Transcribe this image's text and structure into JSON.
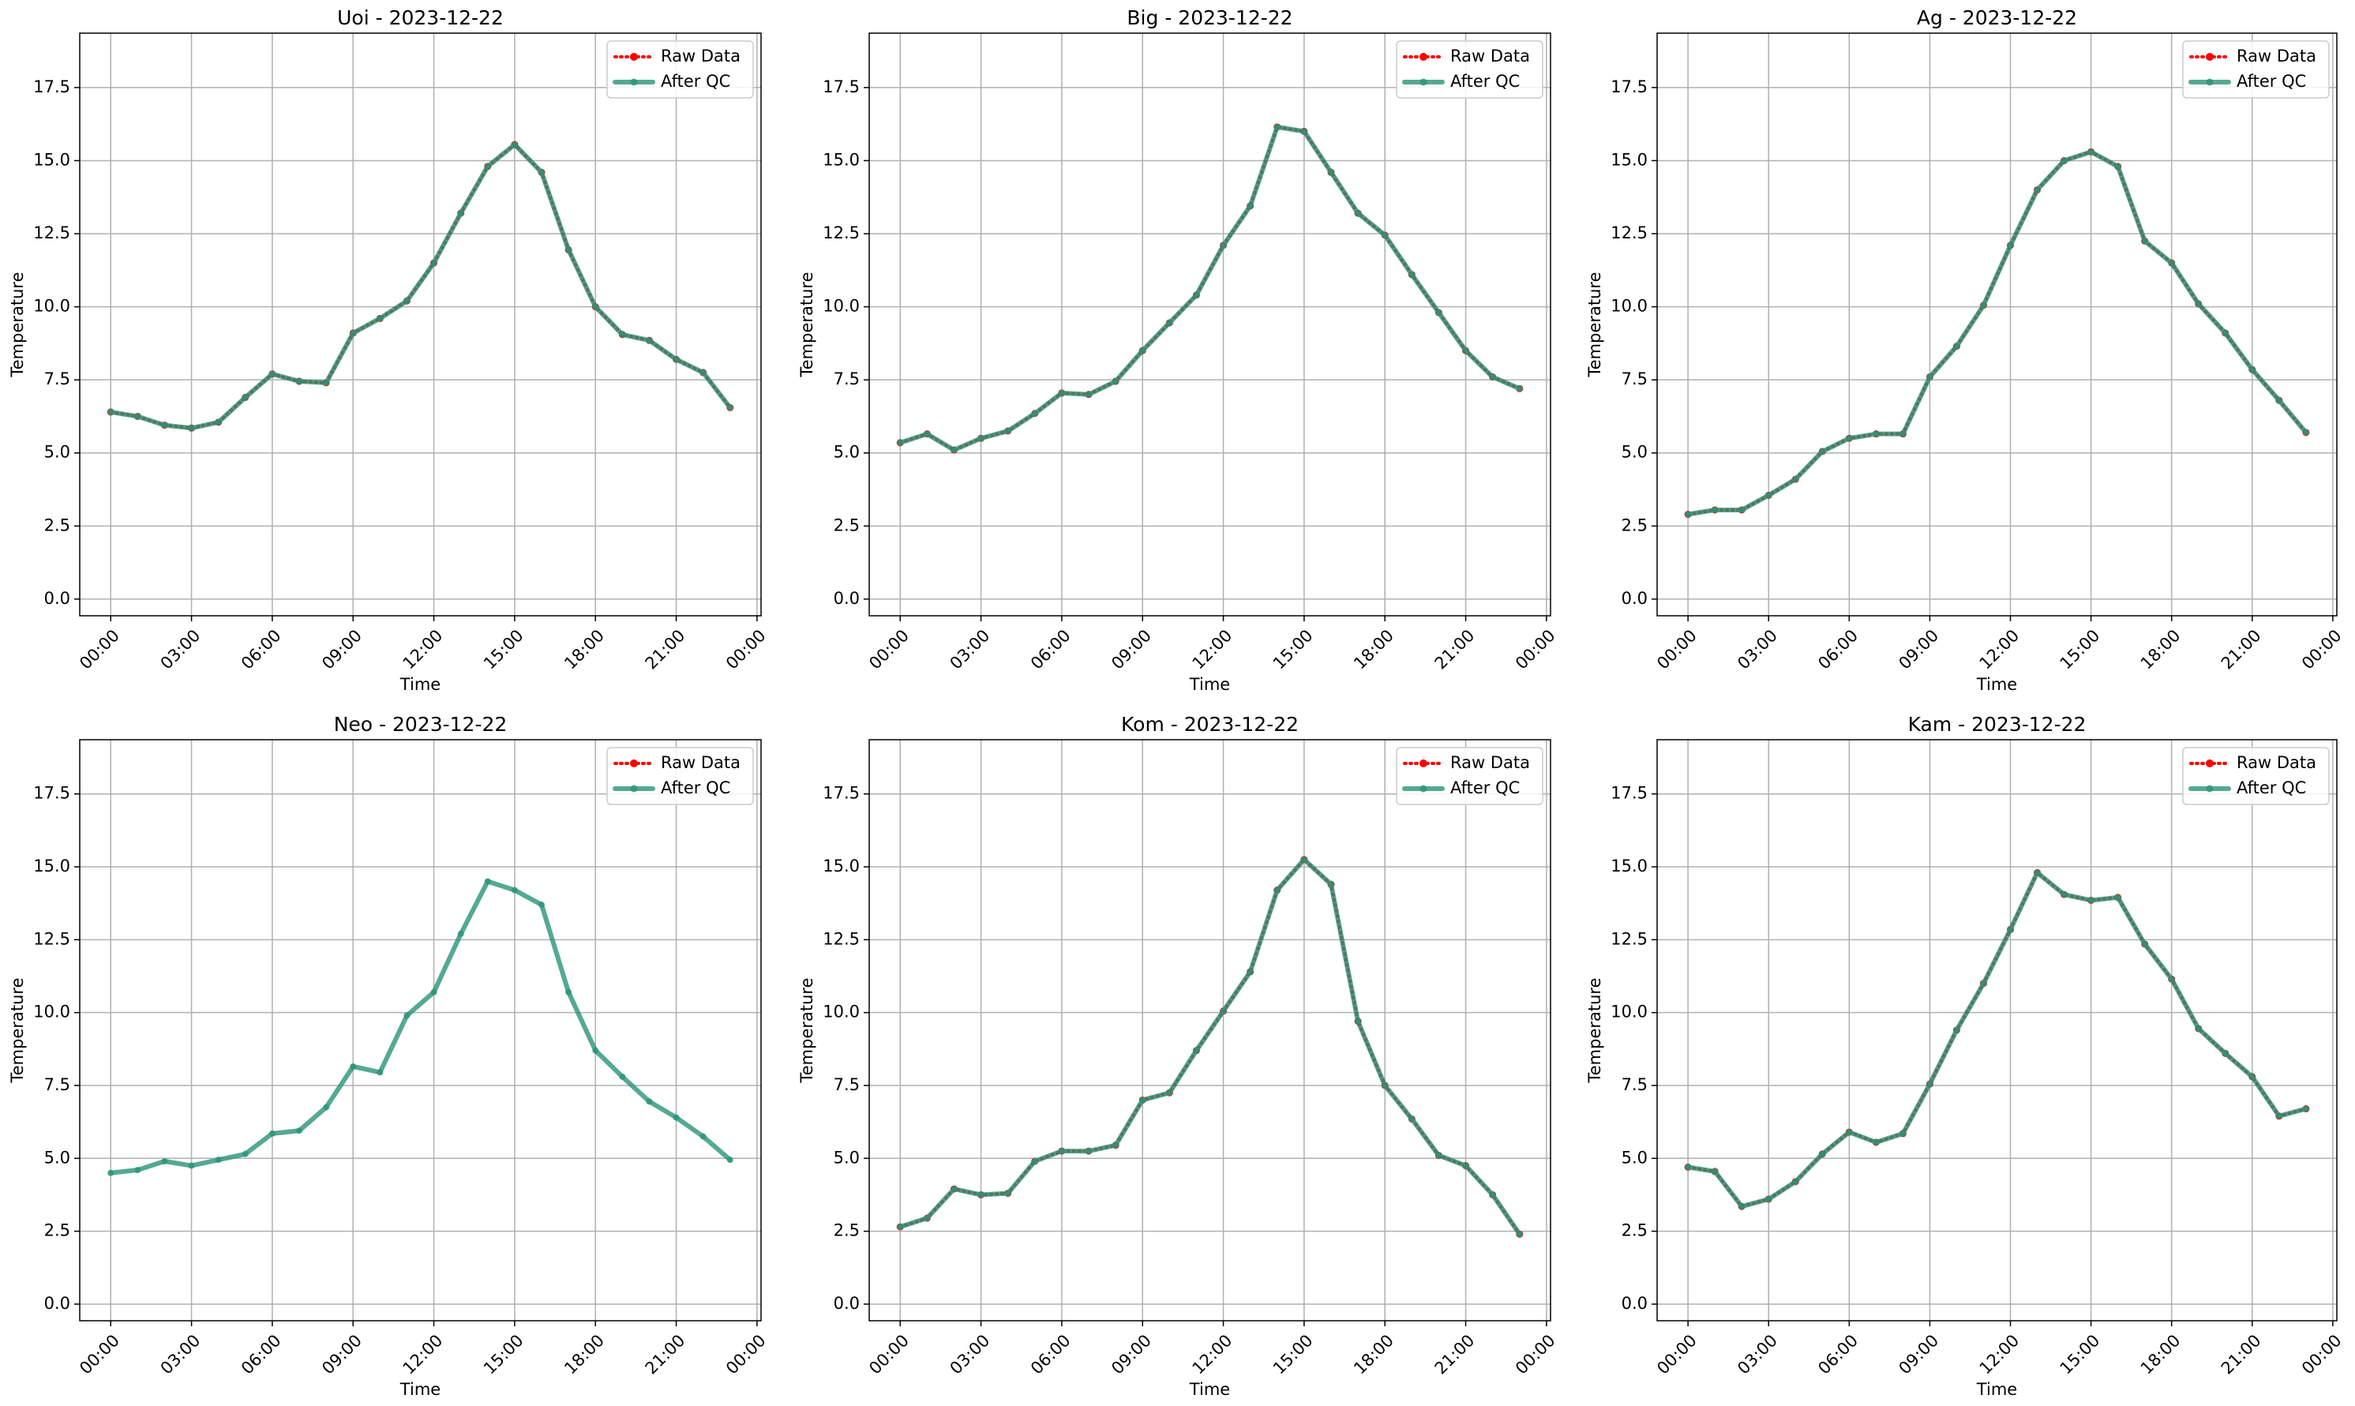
{
  "chart_data": [
    {
      "type": "line",
      "title": "Uoi - 2023-12-22",
      "xlabel": "Time",
      "ylabel": "Temperature",
      "x": [
        0,
        1,
        2,
        3,
        4,
        5,
        6,
        7,
        8,
        9,
        10,
        11,
        12,
        13,
        14,
        15,
        16,
        17,
        18,
        19,
        20,
        21,
        22,
        23
      ],
      "xlim": [
        -1.15,
        24.15
      ],
      "xticks": [
        {
          "value": 0,
          "label": "00:00"
        },
        {
          "value": 3,
          "label": "03:00"
        },
        {
          "value": 6,
          "label": "06:00"
        },
        {
          "value": 9,
          "label": "09:00"
        },
        {
          "value": 12,
          "label": "12:00"
        },
        {
          "value": 15,
          "label": "15:00"
        },
        {
          "value": 18,
          "label": "18:00"
        },
        {
          "value": 21,
          "label": "21:00"
        },
        {
          "value": 24,
          "label": "00:00"
        }
      ],
      "ylim": [
        -0.57,
        19.36
      ],
      "yticks": [
        {
          "value": 0,
          "label": "0.0"
        },
        2.5,
        {
          "value": 5,
          "label": "5.0"
        },
        7.5,
        {
          "value": 10,
          "label": "10.0"
        },
        12.5,
        {
          "value": 15,
          "label": "15.0"
        },
        17.5
      ],
      "grid": true,
      "legend": "upper right",
      "series": [
        {
          "name": "Raw Data",
          "color": "#ff0000",
          "values": [
            6.4,
            6.25,
            5.95,
            5.85,
            6.05,
            6.9,
            7.7,
            7.45,
            7.4,
            9.1,
            9.6,
            10.2,
            11.5,
            13.2,
            14.8,
            15.55,
            14.6,
            11.95,
            10.0,
            9.05,
            8.85,
            8.2,
            7.75,
            6.55
          ]
        },
        {
          "name": "After QC",
          "color": "#2a9478",
          "values": [
            6.4,
            6.25,
            5.95,
            5.85,
            6.05,
            6.9,
            7.7,
            7.45,
            7.4,
            9.1,
            9.6,
            10.2,
            11.5,
            13.2,
            14.8,
            15.55,
            14.6,
            11.95,
            10.0,
            9.05,
            8.85,
            8.2,
            7.75,
            6.55
          ]
        }
      ]
    },
    {
      "type": "line",
      "title": "Big - 2023-12-22",
      "xlabel": "Time",
      "ylabel": "Temperature",
      "x": [
        0,
        1,
        2,
        3,
        4,
        5,
        6,
        7,
        8,
        9,
        10,
        11,
        12,
        13,
        14,
        15,
        16,
        17,
        18,
        19,
        20,
        21,
        22,
        23
      ],
      "xlim": [
        -1.15,
        24.15
      ],
      "xticks": [
        {
          "value": 0,
          "label": "00:00"
        },
        {
          "value": 3,
          "label": "03:00"
        },
        {
          "value": 6,
          "label": "06:00"
        },
        {
          "value": 9,
          "label": "09:00"
        },
        {
          "value": 12,
          "label": "12:00"
        },
        {
          "value": 15,
          "label": "15:00"
        },
        {
          "value": 18,
          "label": "18:00"
        },
        {
          "value": 21,
          "label": "21:00"
        },
        {
          "value": 24,
          "label": "00:00"
        }
      ],
      "ylim": [
        -0.57,
        19.36
      ],
      "yticks": [
        {
          "value": 0,
          "label": "0.0"
        },
        2.5,
        {
          "value": 5,
          "label": "5.0"
        },
        7.5,
        {
          "value": 10,
          "label": "10.0"
        },
        12.5,
        {
          "value": 15,
          "label": "15.0"
        },
        17.5
      ],
      "grid": true,
      "legend": "upper right",
      "series": [
        {
          "name": "Raw Data",
          "color": "#ff0000",
          "values": [
            5.35,
            5.65,
            5.1,
            5.5,
            5.75,
            6.35,
            7.05,
            7.0,
            7.45,
            8.5,
            9.45,
            10.4,
            12.1,
            13.45,
            16.15,
            16.0,
            14.6,
            13.2,
            12.45,
            11.1,
            9.8,
            8.5,
            7.6,
            7.2
          ]
        },
        {
          "name": "After QC",
          "color": "#2a9478",
          "values": [
            5.35,
            5.65,
            5.1,
            5.5,
            5.75,
            6.35,
            7.05,
            7.0,
            7.45,
            8.5,
            9.45,
            10.4,
            12.1,
            13.45,
            16.15,
            16.0,
            14.6,
            13.2,
            12.45,
            11.1,
            9.8,
            8.5,
            7.6,
            7.2
          ]
        }
      ]
    },
    {
      "type": "line",
      "title": "Ag - 2023-12-22",
      "xlabel": "Time",
      "ylabel": "Temperature",
      "x": [
        0,
        1,
        2,
        3,
        4,
        5,
        6,
        7,
        8,
        9,
        10,
        11,
        12,
        13,
        14,
        15,
        16,
        17,
        18,
        19,
        20,
        21,
        22,
        23
      ],
      "xlim": [
        -1.15,
        24.15
      ],
      "xticks": [
        {
          "value": 0,
          "label": "00:00"
        },
        {
          "value": 3,
          "label": "03:00"
        },
        {
          "value": 6,
          "label": "06:00"
        },
        {
          "value": 9,
          "label": "09:00"
        },
        {
          "value": 12,
          "label": "12:00"
        },
        {
          "value": 15,
          "label": "15:00"
        },
        {
          "value": 18,
          "label": "18:00"
        },
        {
          "value": 21,
          "label": "21:00"
        },
        {
          "value": 24,
          "label": "00:00"
        }
      ],
      "ylim": [
        -0.57,
        19.36
      ],
      "yticks": [
        {
          "value": 0,
          "label": "0.0"
        },
        2.5,
        {
          "value": 5,
          "label": "5.0"
        },
        7.5,
        {
          "value": 10,
          "label": "10.0"
        },
        12.5,
        {
          "value": 15,
          "label": "15.0"
        },
        17.5
      ],
      "grid": true,
      "legend": "upper right",
      "series": [
        {
          "name": "Raw Data",
          "color": "#ff0000",
          "values": [
            2.9,
            3.05,
            3.05,
            3.55,
            4.1,
            5.05,
            5.5,
            5.65,
            5.65,
            7.6,
            8.65,
            10.05,
            12.1,
            14.0,
            15.0,
            15.3,
            14.8,
            12.25,
            11.5,
            10.1,
            9.1,
            7.85,
            6.8,
            5.7
          ]
        },
        {
          "name": "After QC",
          "color": "#2a9478",
          "values": [
            2.9,
            3.05,
            3.05,
            3.55,
            4.1,
            5.05,
            5.5,
            5.65,
            5.65,
            7.6,
            8.65,
            10.05,
            12.1,
            14.0,
            15.0,
            15.3,
            14.8,
            12.25,
            11.5,
            10.1,
            9.1,
            7.85,
            6.8,
            5.7
          ]
        }
      ]
    },
    {
      "type": "line",
      "title": "Neo - 2023-12-22",
      "xlabel": "Time",
      "ylabel": "Temperature",
      "x": [
        0,
        1,
        2,
        3,
        4,
        5,
        6,
        7,
        8,
        9,
        10,
        11,
        12,
        13,
        14,
        15,
        16,
        17,
        18,
        19,
        20,
        21,
        22,
        23
      ],
      "xlim": [
        -1.15,
        24.15
      ],
      "xticks": [
        {
          "value": 0,
          "label": "00:00"
        },
        {
          "value": 3,
          "label": "03:00"
        },
        {
          "value": 6,
          "label": "06:00"
        },
        {
          "value": 9,
          "label": "09:00"
        },
        {
          "value": 12,
          "label": "12:00"
        },
        {
          "value": 15,
          "label": "15:00"
        },
        {
          "value": 18,
          "label": "18:00"
        },
        {
          "value": 21,
          "label": "21:00"
        },
        {
          "value": 24,
          "label": "00:00"
        }
      ],
      "ylim": [
        -0.57,
        19.36
      ],
      "yticks": [
        {
          "value": 0,
          "label": "0.0"
        },
        2.5,
        {
          "value": 5,
          "label": "5.0"
        },
        7.5,
        {
          "value": 10,
          "label": "10.0"
        },
        12.5,
        {
          "value": 15,
          "label": "15.0"
        },
        17.5
      ],
      "grid": true,
      "legend": "upper right",
      "series": [
        {
          "name": "Raw Data",
          "color": "#ff0000",
          "values": [
            null,
            null,
            null,
            null,
            null,
            null,
            null,
            null,
            null,
            null,
            null,
            null,
            null,
            null,
            null,
            null,
            null,
            null,
            null,
            null,
            null,
            null,
            null,
            null
          ]
        },
        {
          "name": "After QC",
          "color": "#2a9478",
          "values": [
            4.5,
            4.6,
            4.9,
            4.75,
            4.95,
            5.15,
            5.85,
            5.95,
            6.75,
            8.15,
            7.95,
            9.9,
            10.7,
            12.7,
            14.5,
            14.2,
            13.7,
            10.7,
            8.7,
            7.8,
            6.95,
            6.4,
            5.75,
            4.95
          ]
        }
      ]
    },
    {
      "type": "line",
      "title": "Kom - 2023-12-22",
      "xlabel": "Time",
      "ylabel": "Temperature",
      "x": [
        0,
        1,
        2,
        3,
        4,
        5,
        6,
        7,
        8,
        9,
        10,
        11,
        12,
        13,
        14,
        15,
        16,
        17,
        18,
        19,
        20,
        21,
        22,
        23
      ],
      "xlim": [
        -1.15,
        24.15
      ],
      "xticks": [
        {
          "value": 0,
          "label": "00:00"
        },
        {
          "value": 3,
          "label": "03:00"
        },
        {
          "value": 6,
          "label": "06:00"
        },
        {
          "value": 9,
          "label": "09:00"
        },
        {
          "value": 12,
          "label": "12:00"
        },
        {
          "value": 15,
          "label": "15:00"
        },
        {
          "value": 18,
          "label": "18:00"
        },
        {
          "value": 21,
          "label": "21:00"
        },
        {
          "value": 24,
          "label": "00:00"
        }
      ],
      "ylim": [
        -0.57,
        19.36
      ],
      "yticks": [
        {
          "value": 0,
          "label": "0.0"
        },
        2.5,
        {
          "value": 5,
          "label": "5.0"
        },
        7.5,
        {
          "value": 10,
          "label": "10.0"
        },
        12.5,
        {
          "value": 15,
          "label": "15.0"
        },
        17.5
      ],
      "grid": true,
      "legend": "upper right",
      "series": [
        {
          "name": "Raw Data",
          "color": "#ff0000",
          "values": [
            2.65,
            2.95,
            3.95,
            3.75,
            3.8,
            4.9,
            5.25,
            5.25,
            5.45,
            7.0,
            7.25,
            8.7,
            10.05,
            11.4,
            14.2,
            15.25,
            14.4,
            9.7,
            7.5,
            6.35,
            5.1,
            4.75,
            3.75,
            2.4
          ]
        },
        {
          "name": "After QC",
          "color": "#2a9478",
          "values": [
            2.65,
            2.95,
            3.95,
            3.75,
            3.8,
            4.9,
            5.25,
            5.25,
            5.45,
            7.0,
            7.25,
            8.7,
            10.05,
            11.4,
            14.2,
            15.25,
            14.4,
            9.7,
            7.5,
            6.35,
            5.1,
            4.75,
            3.75,
            2.4
          ]
        }
      ]
    },
    {
      "type": "line",
      "title": "Kam - 2023-12-22",
      "xlabel": "Time",
      "ylabel": "Temperature",
      "x": [
        0,
        1,
        2,
        3,
        4,
        5,
        6,
        7,
        8,
        9,
        10,
        11,
        12,
        13,
        14,
        15,
        16,
        17,
        18,
        19,
        20,
        21,
        22,
        23
      ],
      "xlim": [
        -1.15,
        24.15
      ],
      "xticks": [
        {
          "value": 0,
          "label": "00:00"
        },
        {
          "value": 3,
          "label": "03:00"
        },
        {
          "value": 6,
          "label": "06:00"
        },
        {
          "value": 9,
          "label": "09:00"
        },
        {
          "value": 12,
          "label": "12:00"
        },
        {
          "value": 15,
          "label": "15:00"
        },
        {
          "value": 18,
          "label": "18:00"
        },
        {
          "value": 21,
          "label": "21:00"
        },
        {
          "value": 24,
          "label": "00:00"
        }
      ],
      "ylim": [
        -0.57,
        19.36
      ],
      "yticks": [
        {
          "value": 0,
          "label": "0.0"
        },
        2.5,
        {
          "value": 5,
          "label": "5.0"
        },
        7.5,
        {
          "value": 10,
          "label": "10.0"
        },
        12.5,
        {
          "value": 15,
          "label": "15.0"
        },
        17.5
      ],
      "grid": true,
      "legend": "upper right",
      "series": [
        {
          "name": "Raw Data",
          "color": "#ff0000",
          "values": [
            4.7,
            4.55,
            3.35,
            3.6,
            4.2,
            5.15,
            5.9,
            5.55,
            5.85,
            7.55,
            9.4,
            11.0,
            12.85,
            14.8,
            14.05,
            13.85,
            13.95,
            12.35,
            11.15,
            9.45,
            8.6,
            7.8,
            6.45,
            6.7
          ]
        },
        {
          "name": "After QC",
          "color": "#2a9478",
          "values": [
            4.7,
            4.55,
            3.35,
            3.6,
            4.2,
            5.15,
            5.9,
            5.55,
            5.85,
            7.55,
            9.4,
            11.0,
            12.85,
            14.8,
            14.05,
            13.85,
            13.95,
            12.35,
            11.15,
            9.45,
            8.6,
            7.8,
            6.45,
            6.7
          ]
        }
      ]
    }
  ]
}
